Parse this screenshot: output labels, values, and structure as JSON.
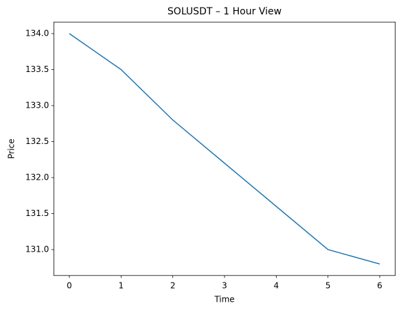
{
  "chart_data": {
    "type": "line",
    "title": "SOLUSDT – 1 Hour View",
    "xlabel": "Time",
    "ylabel": "Price",
    "x": [
      0,
      1,
      2,
      3,
      4,
      5,
      6
    ],
    "series": [
      {
        "color": "#1f77b4",
        "values": [
          134.0,
          133.5,
          132.8,
          132.2,
          131.6,
          131.0,
          130.8
        ]
      }
    ],
    "xlim": [
      -0.3,
      6.3
    ],
    "xticks": [
      0,
      1,
      2,
      3,
      4,
      5,
      6
    ],
    "ylim": [
      130.64,
      134.16
    ],
    "yticks": [
      {
        "value": 131.0,
        "label": "131.0"
      },
      {
        "value": 131.5,
        "label": "131.5"
      },
      {
        "value": 132.0,
        "label": "132.0"
      },
      {
        "value": 132.5,
        "label": "132.5"
      },
      {
        "value": 133.0,
        "label": "133.0"
      },
      {
        "value": 133.5,
        "label": "133.5"
      },
      {
        "value": 134.0,
        "label": "134.0"
      }
    ]
  }
}
